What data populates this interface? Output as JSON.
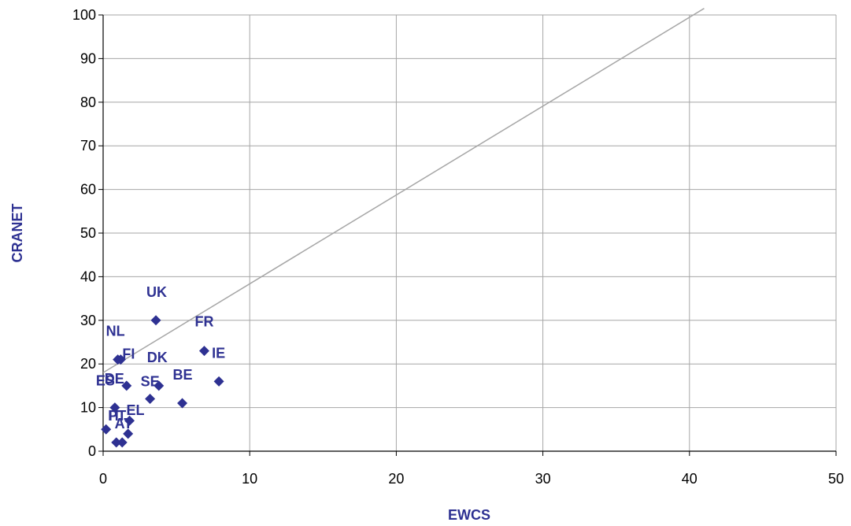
{
  "chart_data": {
    "type": "scatter",
    "title": "",
    "xlabel": "EWCS",
    "ylabel": "CRANET",
    "xlim": [
      0,
      50
    ],
    "ylim": [
      0,
      100
    ],
    "x_ticks": [
      "0",
      "10",
      "20",
      "30",
      "40",
      "50"
    ],
    "y_ticks": [
      "0",
      "10",
      "20",
      "30",
      "40",
      "50",
      "60",
      "70",
      "80",
      "90",
      "100"
    ],
    "grid": true,
    "marker_color": "#2e3192",
    "line_color": "#a6a6a6",
    "reference_line": {
      "x": [
        0,
        41
      ],
      "y": [
        18,
        101.5
      ]
    },
    "points": [
      {
        "label": "UK",
        "x": 3.6,
        "y": 30
      },
      {
        "label": "NL",
        "x": 1.0,
        "y": 21
      },
      {
        "label": "FI",
        "x": 1.2,
        "y": 21
      },
      {
        "label": "FR",
        "x": 6.9,
        "y": 23
      },
      {
        "label": "IE",
        "x": 7.9,
        "y": 16
      },
      {
        "label": "DK",
        "x": 3.8,
        "y": 15
      },
      {
        "label": "SE",
        "x": 3.2,
        "y": 12
      },
      {
        "label": "DE",
        "x": 1.6,
        "y": 15
      },
      {
        "label": "BE",
        "x": 5.4,
        "y": 11
      },
      {
        "label": "EL",
        "x": 1.8,
        "y": 7
      },
      {
        "label": "ES",
        "x": 0.8,
        "y": 10
      },
      {
        "label": "AT",
        "x": 1.7,
        "y": 4
      },
      {
        "label": "IT",
        "x": 0.9,
        "y": 2
      },
      {
        "label": "PT",
        "x": 1.3,
        "y": 2
      },
      {
        "label": "",
        "x": 0.2,
        "y": 5
      }
    ]
  }
}
